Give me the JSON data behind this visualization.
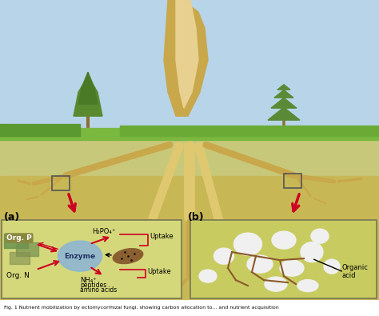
{
  "figsize": [
    4.74,
    3.95
  ],
  "dpi": 100,
  "bg_color": "#ffffff",
  "caption": "Fig. 1 Nutrient mobilization by ectomycorrhizal fungi, showing carbon allocation to... and nutrient acquisition",
  "sky_color": "#b8d4e8",
  "ground_color": "#c8c87a",
  "soil_color": "#d4c87a",
  "deep_soil_color": "#c8b855",
  "panel_a_bg": "#d4d87a",
  "panel_a_box_bg": "#c8cc60",
  "panel_b_bg": "#c8cc60",
  "label_a": "(a)",
  "label_b": "(b)",
  "text_enzyme": "Enzyme",
  "text_org_p": "Org. P",
  "text_org_n": "Org. N",
  "text_h2po4": "H₂PO₄⁺",
  "text_nh4": "NH₄⁺",
  "text_peptides": "peptides",
  "text_amino_acids": "amino acids",
  "text_uptake1": "Uptake",
  "text_uptake2": "Uptake",
  "text_organic_acid": "Organic\nacid",
  "arrow_color": "#cc0022",
  "line_color": "#333333",
  "enzyme_ellipse_color": "#8ab4d8",
  "enzyme_ellipse_edge": "#6a94b8"
}
